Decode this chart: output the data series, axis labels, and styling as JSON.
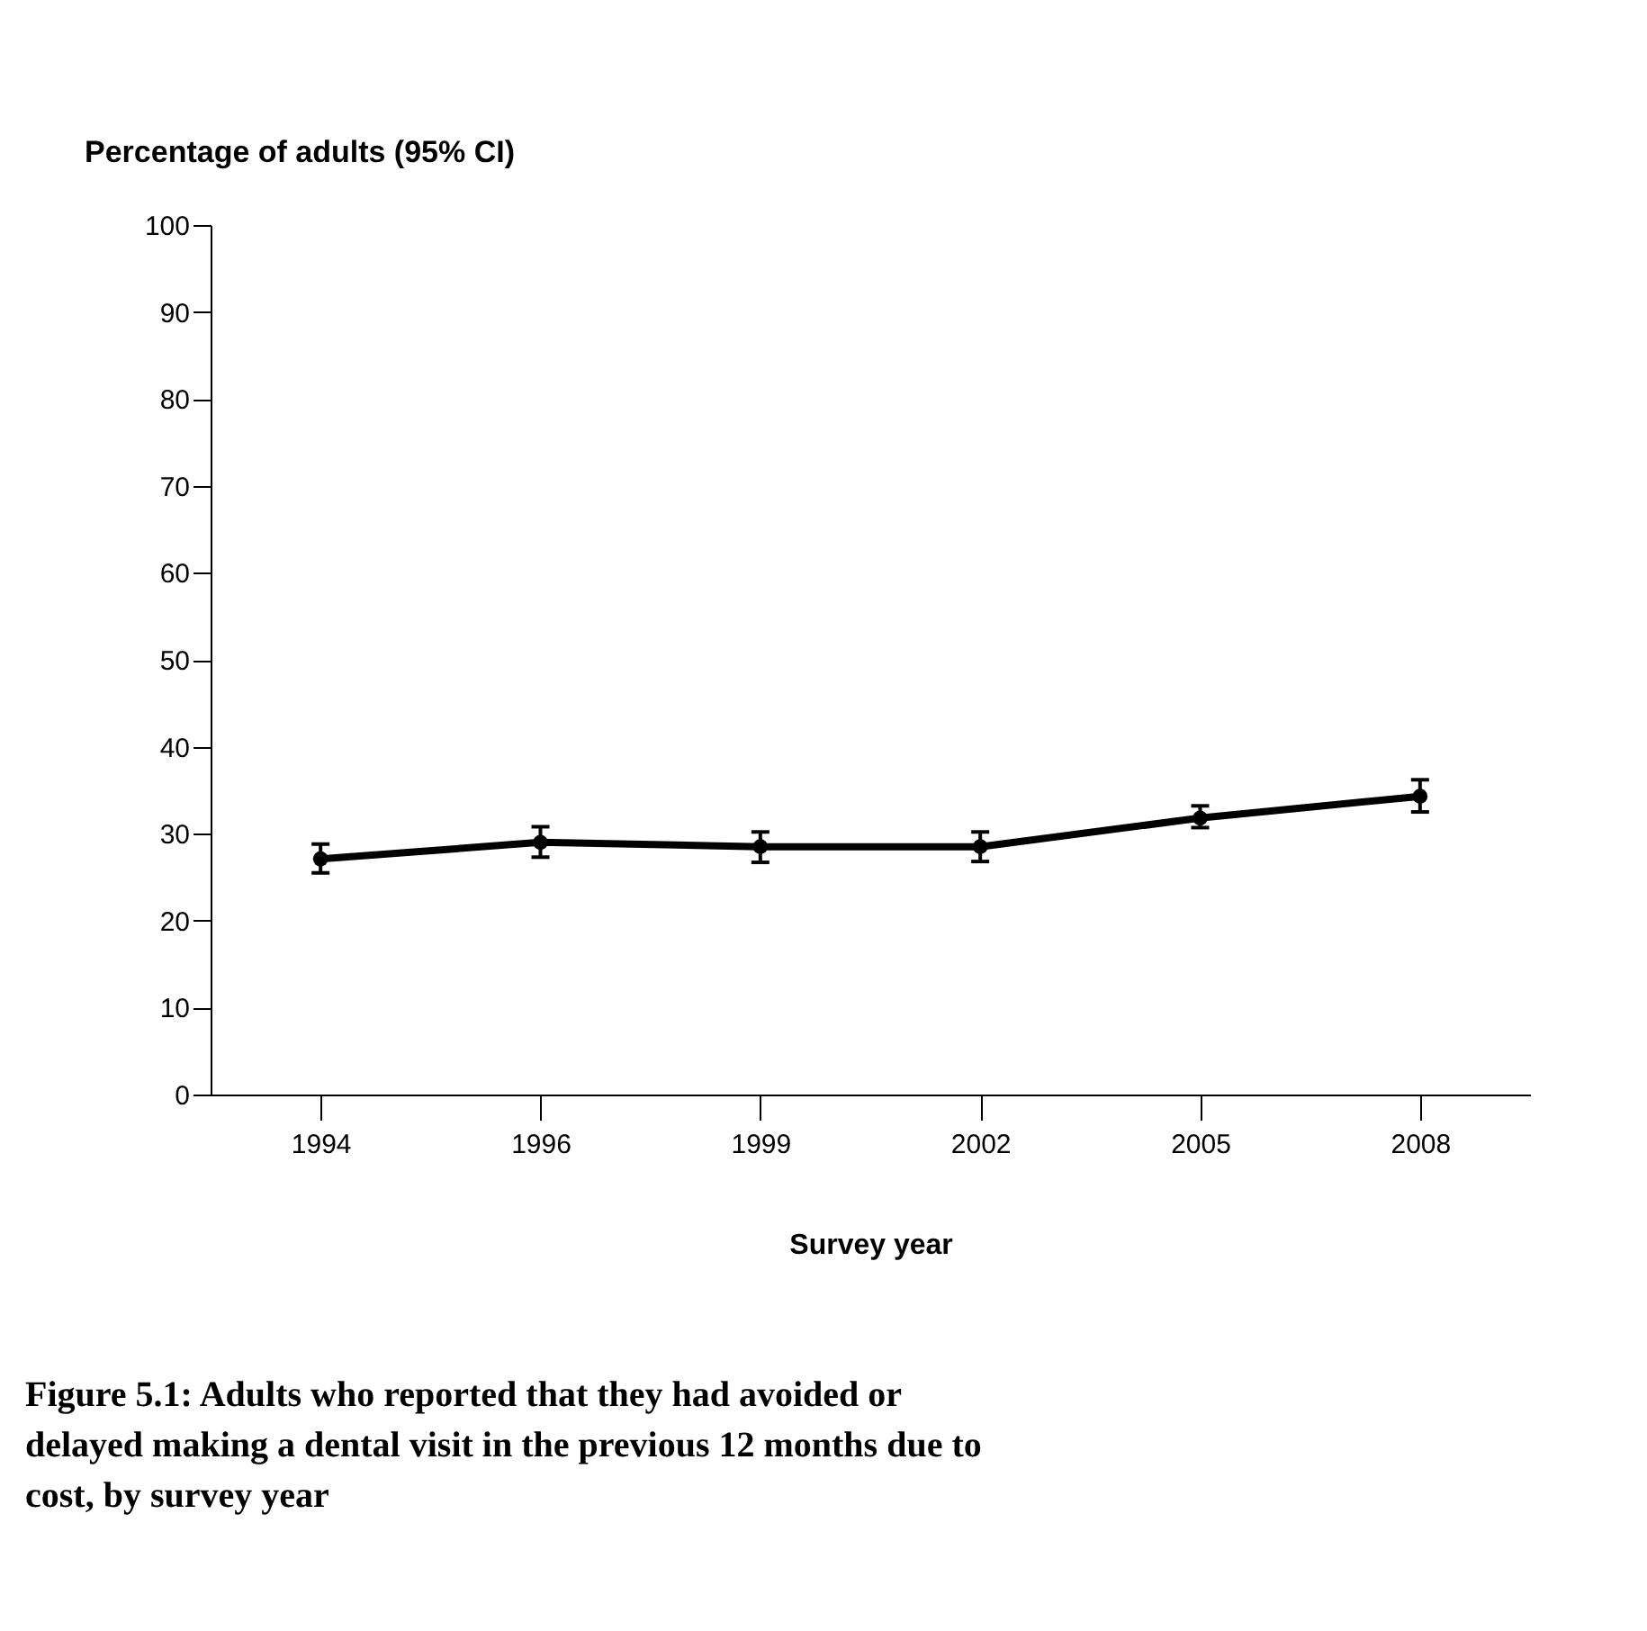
{
  "chart_data": {
    "type": "line",
    "ylabel": "Percentage of adults  (95% CI)",
    "xlabel": "Survey year",
    "categories": [
      "1994",
      "1996",
      "1999",
      "2002",
      "2005",
      "2008"
    ],
    "series": [
      {
        "color": "#000000",
        "values": [
          27.1,
          29.0,
          28.5,
          28.5,
          31.8,
          34.3
        ],
        "errors": [
          [
            25.5,
            28.8
          ],
          [
            27.3,
            30.8
          ],
          [
            26.7,
            30.2
          ],
          [
            26.8,
            30.2
          ],
          [
            30.7,
            33.2
          ],
          [
            32.5,
            36.2
          ]
        ]
      }
    ],
    "ylim": [
      0,
      100
    ],
    "yticks": [
      0,
      10,
      20,
      30,
      40,
      50,
      60,
      70,
      80,
      90,
      100
    ],
    "grid": false,
    "legend": false,
    "marker": "circle",
    "line_style": "solid",
    "annotations": [
      "Figure 5.1: Adults who reported that they had avoided or delayed making a dental visit in the previous 12 months due to cost, by survey year"
    ]
  }
}
